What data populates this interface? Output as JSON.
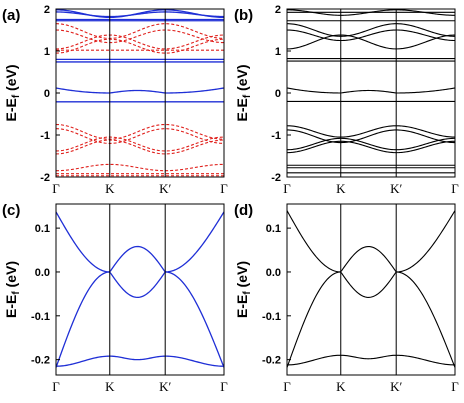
{
  "colors": {
    "blue": "#1f2fd6",
    "red": "#e0201c",
    "black": "#000000",
    "frame": "#000000"
  },
  "chart_data": [
    {
      "panel": "(a)",
      "type": "line",
      "ylabel": "E-E",
      "ylabel_sub": "f",
      "ylabel_unit": " (eV)",
      "x_ticks": [
        "Γ",
        "K",
        "K′",
        "Γ"
      ],
      "ylim": [
        -2,
        2
      ],
      "y_ticks": [
        "-2",
        "-1",
        "0",
        "1",
        "2"
      ],
      "grid": false,
      "series": [
        {
          "style": "blue-solid",
          "kind": "flat",
          "values": [
            1.72
          ]
        },
        {
          "style": "blue-solid",
          "kind": "flat",
          "values": [
            1.75
          ]
        },
        {
          "style": "blue-solid",
          "kind": "cross",
          "values": [
            1.98,
            1.8
          ]
        },
        {
          "style": "blue-solid",
          "kind": "cross",
          "values": [
            1.93,
            1.82
          ]
        },
        {
          "style": "blue-solid",
          "kind": "flat",
          "values": [
            0.8
          ]
        },
        {
          "style": "blue-solid",
          "kind": "flat",
          "values": [
            0.74
          ]
        },
        {
          "style": "blue-solid",
          "kind": "dirac",
          "values": [
            0.12,
            0.0,
            0.06,
            -0.22
          ]
        },
        {
          "style": "blue-solid",
          "kind": "flat",
          "values": [
            -0.21
          ]
        },
        {
          "style": "red-dash",
          "kind": "cross",
          "values": [
            1.65,
            1.3
          ]
        },
        {
          "style": "red-dash",
          "kind": "cross",
          "values": [
            1.5,
            1.2
          ]
        },
        {
          "style": "red-dash",
          "kind": "cross",
          "values": [
            1.05,
            1.38
          ]
        },
        {
          "style": "red-dash",
          "kind": "cross",
          "values": [
            0.95,
            1.28
          ]
        },
        {
          "style": "red-dash",
          "kind": "flat",
          "values": [
            1.02
          ]
        },
        {
          "style": "red-dash",
          "kind": "cross",
          "values": [
            -0.75,
            -1.1
          ]
        },
        {
          "style": "red-dash",
          "kind": "cross",
          "values": [
            -0.85,
            -1.2
          ]
        },
        {
          "style": "red-dash",
          "kind": "cross",
          "values": [
            -1.38,
            -1.05
          ]
        },
        {
          "style": "red-dash",
          "kind": "cross",
          "values": [
            -1.45,
            -1.12
          ]
        },
        {
          "style": "red-dash",
          "kind": "cross",
          "values": [
            -1.85,
            -1.7
          ]
        },
        {
          "style": "red-dash",
          "kind": "flat",
          "values": [
            -1.92
          ]
        },
        {
          "style": "red-dash",
          "kind": "flat",
          "values": [
            -1.97
          ]
        }
      ]
    },
    {
      "panel": "(b)",
      "type": "line",
      "ylabel": "E-E",
      "ylabel_sub": "f",
      "ylabel_unit": " (eV)",
      "x_ticks": [
        "Γ",
        "K",
        "K′",
        "Γ"
      ],
      "ylim": [
        -2,
        2
      ],
      "y_ticks": [
        "-2",
        "-1",
        "0",
        "1",
        "2"
      ],
      "grid": false,
      "series": [
        {
          "style": "black-solid",
          "kind": "flat",
          "values": [
            1.92
          ]
        },
        {
          "style": "black-solid",
          "kind": "cross",
          "values": [
            1.98,
            1.85
          ]
        },
        {
          "style": "black-solid",
          "kind": "cross",
          "values": [
            1.65,
            1.35
          ]
        },
        {
          "style": "black-solid",
          "kind": "cross",
          "values": [
            1.5,
            1.25
          ]
        },
        {
          "style": "black-solid",
          "kind": "cross",
          "values": [
            1.05,
            1.38
          ]
        },
        {
          "style": "black-solid",
          "kind": "flat",
          "values": [
            1.72
          ]
        },
        {
          "style": "black-solid",
          "kind": "flat",
          "values": [
            0.82
          ]
        },
        {
          "style": "black-solid",
          "kind": "flat",
          "values": [
            0.76
          ]
        },
        {
          "style": "black-solid",
          "kind": "dirac",
          "values": [
            0.12,
            0.0,
            0.06,
            -0.22
          ]
        },
        {
          "style": "black-solid",
          "kind": "flat",
          "values": [
            -0.2
          ]
        },
        {
          "style": "black-solid",
          "kind": "cross",
          "values": [
            -0.78,
            -1.05
          ]
        },
        {
          "style": "black-solid",
          "kind": "cross",
          "values": [
            -0.88,
            -1.18
          ]
        },
        {
          "style": "black-solid",
          "kind": "cross",
          "values": [
            -1.35,
            -1.08
          ]
        },
        {
          "style": "black-solid",
          "kind": "cross",
          "values": [
            -1.42,
            -1.15
          ]
        },
        {
          "style": "black-solid",
          "kind": "flat",
          "values": [
            -1.72
          ]
        },
        {
          "style": "black-solid",
          "kind": "flat",
          "values": [
            -1.78
          ]
        },
        {
          "style": "black-solid",
          "kind": "flat",
          "values": [
            -1.9
          ]
        }
      ]
    },
    {
      "panel": "(c)",
      "type": "line",
      "ylabel": "E-E",
      "ylabel_sub": "f",
      "ylabel_unit": " (eV)",
      "x_ticks": [
        "Γ",
        "K",
        "K′",
        "Γ"
      ],
      "ylim": [
        -0.235,
        0.155
      ],
      "y_ticks": [
        "-0.2",
        "-0.1",
        "0.0",
        "0.1"
      ],
      "grid": false,
      "series": [
        {
          "style": "blue-solid",
          "kind": "band_up",
          "values": [
            0.137,
            0.0,
            0.058,
            0.0,
            0.137
          ]
        },
        {
          "style": "blue-solid",
          "kind": "band_dn",
          "values": [
            -0.218,
            0.0,
            -0.058,
            0.0,
            -0.218
          ]
        },
        {
          "style": "blue-solid",
          "kind": "flatwave",
          "values": [
            -0.215,
            -0.192,
            -0.2,
            -0.192,
            -0.215
          ]
        }
      ]
    },
    {
      "panel": "(d)",
      "type": "line",
      "ylabel": "E-E",
      "ylabel_sub": "f",
      "ylabel_unit": " (eV)",
      "x_ticks": [
        "Γ",
        "K",
        "K′",
        "Γ"
      ],
      "ylim": [
        -0.235,
        0.155
      ],
      "y_ticks": [
        "-0.2",
        "-0.1",
        "0.0",
        "0.1"
      ],
      "grid": false,
      "series": [
        {
          "style": "black-solid",
          "kind": "band_up",
          "values": [
            0.14,
            0.0,
            0.058,
            0.0,
            0.14
          ]
        },
        {
          "style": "black-solid",
          "kind": "band_dn",
          "values": [
            -0.218,
            0.0,
            -0.058,
            0.0,
            -0.218
          ]
        },
        {
          "style": "black-solid",
          "kind": "flatwave",
          "values": [
            -0.212,
            -0.19,
            -0.198,
            -0.19,
            -0.212
          ]
        }
      ]
    }
  ]
}
